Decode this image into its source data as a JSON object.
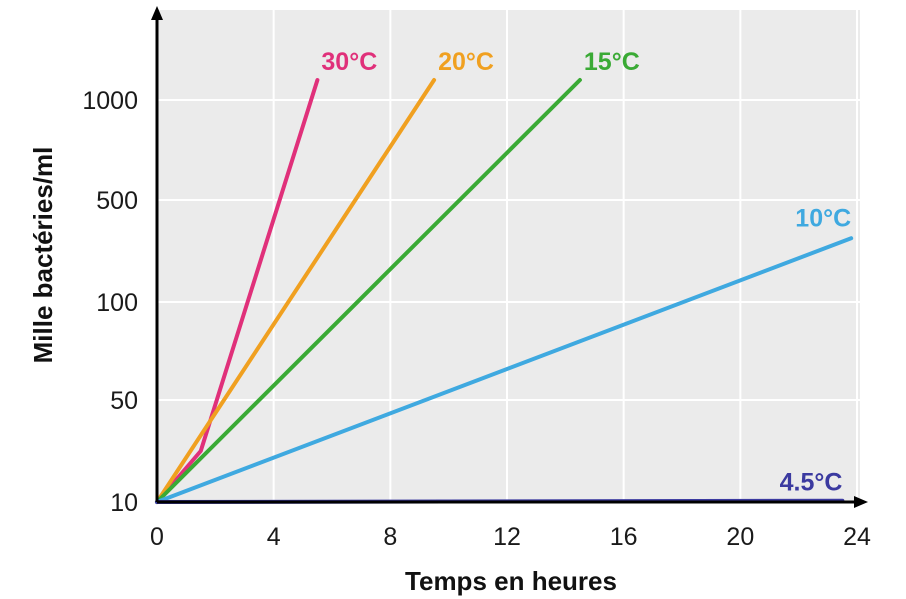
{
  "chart_data": {
    "type": "line",
    "title": "",
    "xlabel": "Temps en heures",
    "ylabel": "Mille bactéries/ml",
    "x_ticks": [
      0,
      4,
      8,
      12,
      16,
      20,
      24
    ],
    "y_ticks": [
      "10",
      "50",
      "100",
      "500",
      "1000"
    ],
    "y_tick_values": [
      10,
      50,
      100,
      500,
      1000
    ],
    "xlim": [
      0,
      24
    ],
    "ylim_note": "y axis uses a non-linear (log-like) scale: 10, 50, 100, 500, 1000",
    "grid": true,
    "series": [
      {
        "name": "30°C",
        "color": "#e0307a",
        "x": [
          0,
          1.5,
          5.5
        ],
        "y": [
          10,
          30,
          1100
        ]
      },
      {
        "name": "20°C",
        "color": "#f0a020",
        "x": [
          0,
          9.5
        ],
        "y": [
          10,
          1100
        ]
      },
      {
        "name": "15°C",
        "color": "#3aaa35",
        "x": [
          0,
          14.5
        ],
        "y": [
          10,
          1100
        ]
      },
      {
        "name": "10°C",
        "color": "#3fa9e0",
        "x": [
          0,
          23.8
        ],
        "y": [
          10,
          350
        ]
      },
      {
        "name": "4.5°C",
        "color": "#3b3aa0",
        "x": [
          0,
          23.5
        ],
        "y": [
          10,
          10.5
        ]
      }
    ]
  }
}
